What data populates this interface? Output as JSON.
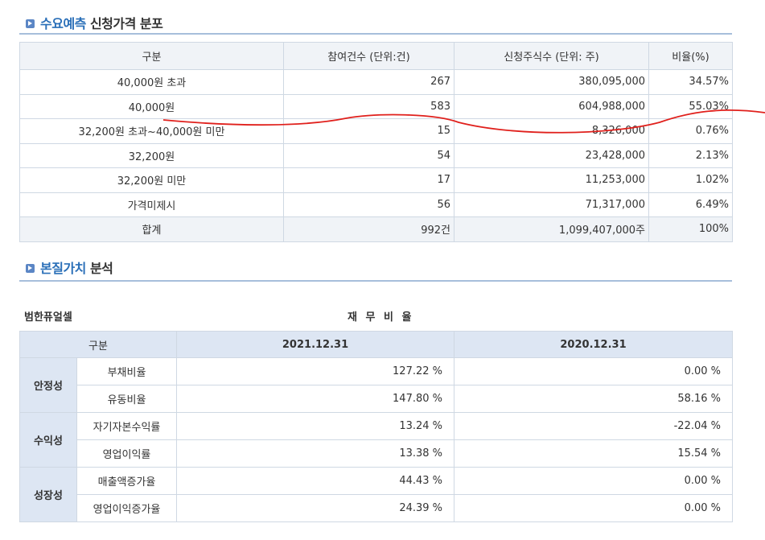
{
  "section1": {
    "title_highlight": "수요예측",
    "title_rest": " 신청가격 분포"
  },
  "table1": {
    "headers": [
      "구분",
      "참여건수 (단위:건)",
      "신청주식수 (단위: 주)",
      "비율(%)"
    ],
    "rows": [
      [
        "40,000원 초과",
        "267",
        "380,095,000",
        "34.57%"
      ],
      [
        "40,000원",
        "583",
        "604,988,000",
        "55.03%"
      ],
      [
        "32,200원 초과~40,000원 미만",
        "15",
        "8,326,000",
        "0.76%"
      ],
      [
        "32,200원",
        "54",
        "23,428,000",
        "2.13%"
      ],
      [
        "32,200원 미만",
        "17",
        "11,253,000",
        "1.02%"
      ],
      [
        "가격미제시",
        "56",
        "71,317,000",
        "6.49%"
      ]
    ],
    "total": [
      "합계",
      "992건",
      "1,099,407,000주",
      "100%"
    ]
  },
  "section2": {
    "title_highlight": "본질가치",
    "title_rest": " 분석"
  },
  "company": "범한퓨얼셀",
  "fin_title": "재 무 비 율",
  "table2": {
    "headers": [
      "구분",
      "2021.12.31",
      "2020.12.31"
    ],
    "groups": [
      {
        "name": "안정성",
        "rows": [
          [
            "부채비율",
            "127.22 %",
            "0.00 %"
          ],
          [
            "유동비율",
            "147.80 %",
            "58.16 %"
          ]
        ]
      },
      {
        "name": "수익성",
        "rows": [
          [
            "자기자본수익률",
            "13.24 %",
            "-22.04 %"
          ],
          [
            "영업이익률",
            "13.38 %",
            "15.54 %"
          ]
        ]
      },
      {
        "name": "성장성",
        "rows": [
          [
            "매출액증가율",
            "44.43 %",
            "0.00 %"
          ],
          [
            "영업이익증가율",
            "24.39 %",
            "0.00 %"
          ]
        ]
      }
    ]
  },
  "annotation_color": "#e0201c"
}
